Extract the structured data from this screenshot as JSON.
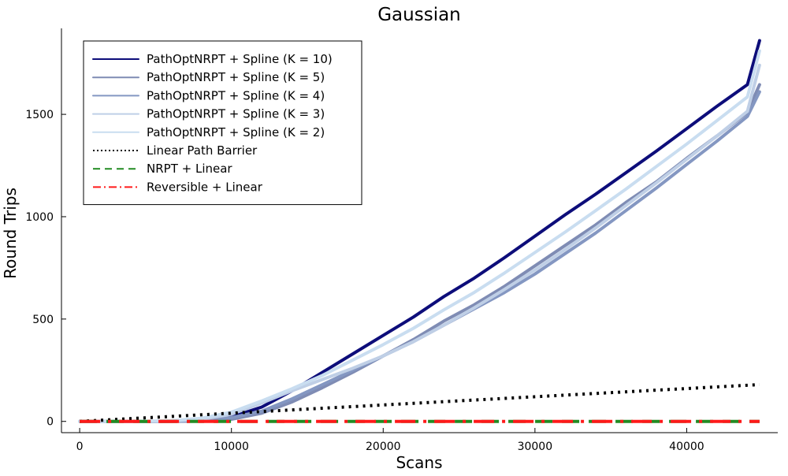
{
  "chart_data": {
    "type": "line",
    "title": "Gaussian",
    "xlabel": "Scans",
    "ylabel": "Round Trips",
    "xlim": [
      -1200,
      46000
    ],
    "ylim": [
      -55,
      1920
    ],
    "xticks": [
      0,
      10000,
      20000,
      30000,
      40000
    ],
    "yticks": [
      0,
      500,
      1000,
      1500
    ],
    "grid": false,
    "legend_position": "top-left",
    "series": [
      {
        "name": "PathOptNRPT + Spline (K = 10)",
        "color": "#0d0d7a",
        "dash": "solid",
        "points": [
          [
            0,
            0
          ],
          [
            2000,
            0
          ],
          [
            4000,
            0
          ],
          [
            6000,
            1
          ],
          [
            8000,
            5
          ],
          [
            10000,
            22
          ],
          [
            12000,
            70
          ],
          [
            14000,
            150
          ],
          [
            16000,
            240
          ],
          [
            18000,
            330
          ],
          [
            20000,
            420
          ],
          [
            22000,
            510
          ],
          [
            24000,
            610
          ],
          [
            26000,
            700
          ],
          [
            28000,
            800
          ],
          [
            30000,
            905
          ],
          [
            32000,
            1010
          ],
          [
            34000,
            1110
          ],
          [
            36000,
            1215
          ],
          [
            38000,
            1320
          ],
          [
            40000,
            1430
          ],
          [
            42000,
            1540
          ],
          [
            44000,
            1645
          ],
          [
            44800,
            1860
          ]
        ]
      },
      {
        "name": "PathOptNRPT + Spline (K = 5)",
        "color": "#7f8cb4",
        "dash": "solid",
        "points": [
          [
            0,
            0
          ],
          [
            2000,
            0
          ],
          [
            4000,
            0
          ],
          [
            6000,
            0
          ],
          [
            8000,
            2
          ],
          [
            10000,
            10
          ],
          [
            12000,
            40
          ],
          [
            14000,
            95
          ],
          [
            16000,
            165
          ],
          [
            18000,
            240
          ],
          [
            20000,
            320
          ],
          [
            22000,
            400
          ],
          [
            24000,
            490
          ],
          [
            26000,
            570
          ],
          [
            28000,
            660
          ],
          [
            30000,
            760
          ],
          [
            32000,
            860
          ],
          [
            34000,
            960
          ],
          [
            36000,
            1070
          ],
          [
            38000,
            1170
          ],
          [
            40000,
            1285
          ],
          [
            42000,
            1395
          ],
          [
            44000,
            1510
          ],
          [
            44800,
            1645
          ]
        ]
      },
      {
        "name": "PathOptNRPT + Spline (K = 4)",
        "color": "#8497c2",
        "dash": "solid",
        "points": [
          [
            0,
            0
          ],
          [
            2000,
            0
          ],
          [
            4000,
            0
          ],
          [
            6000,
            1
          ],
          [
            8000,
            5
          ],
          [
            10000,
            18
          ],
          [
            12000,
            50
          ],
          [
            14000,
            110
          ],
          [
            16000,
            180
          ],
          [
            18000,
            250
          ],
          [
            20000,
            320
          ],
          [
            22000,
            390
          ],
          [
            24000,
            470
          ],
          [
            26000,
            550
          ],
          [
            28000,
            630
          ],
          [
            30000,
            720
          ],
          [
            32000,
            820
          ],
          [
            34000,
            920
          ],
          [
            36000,
            1030
          ],
          [
            38000,
            1140
          ],
          [
            40000,
            1255
          ],
          [
            42000,
            1370
          ],
          [
            44000,
            1490
          ],
          [
            44800,
            1610
          ]
        ]
      },
      {
        "name": "PathOptNRPT + Spline (K = 3)",
        "color": "#bfcfe6",
        "dash": "solid",
        "points": [
          [
            0,
            0
          ],
          [
            2000,
            0
          ],
          [
            4000,
            0
          ],
          [
            6000,
            2
          ],
          [
            8000,
            10
          ],
          [
            10000,
            35
          ],
          [
            12000,
            90
          ],
          [
            14000,
            150
          ],
          [
            16000,
            205
          ],
          [
            18000,
            260
          ],
          [
            20000,
            320
          ],
          [
            22000,
            390
          ],
          [
            24000,
            470
          ],
          [
            26000,
            555
          ],
          [
            28000,
            645
          ],
          [
            30000,
            740
          ],
          [
            32000,
            840
          ],
          [
            34000,
            945
          ],
          [
            36000,
            1055
          ],
          [
            38000,
            1165
          ],
          [
            40000,
            1280
          ],
          [
            42000,
            1395
          ],
          [
            44000,
            1515
          ],
          [
            44800,
            1740
          ]
        ]
      },
      {
        "name": "PathOptNRPT + Spline (K = 2)",
        "color": "#c9ddf0",
        "dash": "solid",
        "points": [
          [
            0,
            0
          ],
          [
            2000,
            0
          ],
          [
            4000,
            0
          ],
          [
            6000,
            3
          ],
          [
            8000,
            15
          ],
          [
            10000,
            45
          ],
          [
            12000,
            100
          ],
          [
            14000,
            160
          ],
          [
            16000,
            225
          ],
          [
            18000,
            300
          ],
          [
            20000,
            375
          ],
          [
            22000,
            455
          ],
          [
            24000,
            545
          ],
          [
            26000,
            630
          ],
          [
            28000,
            725
          ],
          [
            30000,
            825
          ],
          [
            32000,
            925
          ],
          [
            34000,
            1030
          ],
          [
            36000,
            1135
          ],
          [
            38000,
            1245
          ],
          [
            40000,
            1355
          ],
          [
            42000,
            1470
          ],
          [
            44000,
            1585
          ],
          [
            44800,
            1810
          ]
        ]
      },
      {
        "name": "Linear Path Barrier",
        "color": "#000000",
        "dash": "dot",
        "points": [
          [
            0,
            0
          ],
          [
            44800,
            180
          ]
        ]
      },
      {
        "name": "NRPT + Linear",
        "color": "#228b22",
        "dash": "dash",
        "points": [
          [
            0,
            0
          ],
          [
            44800,
            0
          ]
        ]
      },
      {
        "name": "Reversible + Linear",
        "color": "#ff1a1a",
        "dash": "dashdot",
        "points": [
          [
            0,
            0
          ],
          [
            44800,
            0
          ]
        ]
      }
    ]
  }
}
